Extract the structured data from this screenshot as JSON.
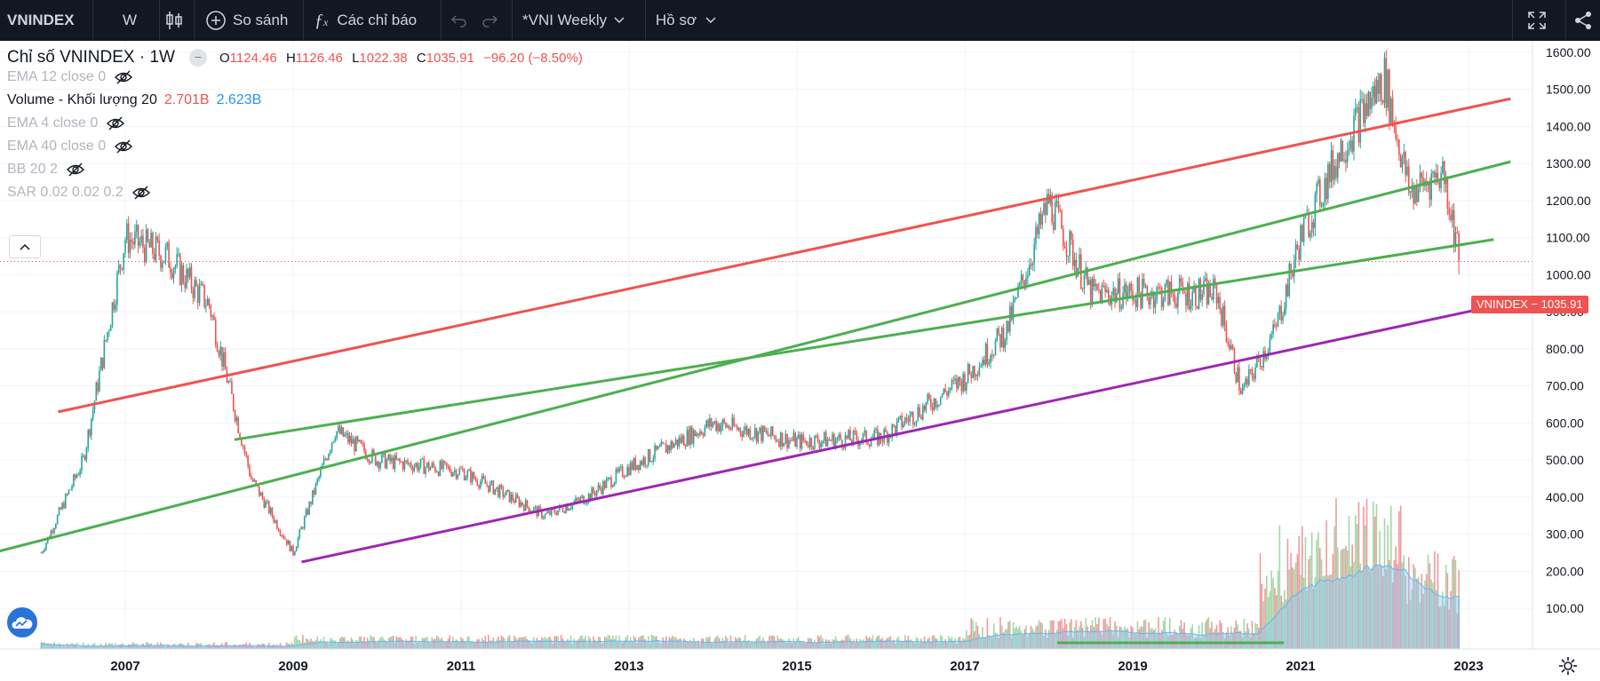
{
  "toolbar": {
    "symbol": "VNINDEX",
    "interval": "W",
    "chart_type_icon": "candles-icon",
    "compare_label": "So sánh",
    "indicators_label": "Các chỉ báo",
    "layout_name": "*VNI Weekly",
    "profile_label": "Hồ sơ"
  },
  "legend": {
    "title": "Chỉ số VNINDEX · 1W",
    "o_label": "O",
    "o_value": "1124.46",
    "h_label": "H",
    "h_value": "1126.46",
    "l_label": "L",
    "l_value": "1022.38",
    "c_label": "C",
    "c_value": "1035.91",
    "change": "−96.20 (−8.50%)",
    "indicators": [
      {
        "label": "EMA 12 close 0",
        "hidden": true
      },
      {
        "label": "Volume - Khối lượng 20",
        "values": [
          "2.701B",
          "2.623B"
        ],
        "hidden": false
      },
      {
        "label": "EMA 4 close 0",
        "hidden": true
      },
      {
        "label": "EMA 40 close 0",
        "hidden": true
      },
      {
        "label": "BB 20 2",
        "hidden": true
      },
      {
        "label": "SAR 0.02 0.02 0.2",
        "hidden": true
      }
    ]
  },
  "price_axis": {
    "ticks": [
      "1600.00",
      "1500.00",
      "1400.00",
      "1300.00",
      "1200.00",
      "1100.00",
      "1000.00",
      "900.00",
      "800.00",
      "700.00",
      "600.00",
      "500.00",
      "400.00",
      "300.00",
      "200.00",
      "100.00"
    ],
    "last_label": "VNINDEX",
    "last_value": "1035.91"
  },
  "time_axis": {
    "ticks": [
      "2007",
      "2009",
      "2011",
      "2013",
      "2015",
      "2017",
      "2019",
      "2021",
      "2023"
    ]
  },
  "colors": {
    "up": "#26a69a",
    "down": "#ef5350",
    "channel_top": "#ef5350",
    "channel_mid": "#4caf50",
    "channel_bottom": "#9c27b0",
    "volume_area": "#90caf9"
  },
  "chart_data": {
    "type": "line",
    "title": "Chỉ số VNINDEX · 1W",
    "x": [
      "2006",
      "2006.5",
      "2007",
      "2007.5",
      "2008",
      "2008.5",
      "2009",
      "2009.5",
      "2010",
      "2011",
      "2012",
      "2012.5",
      "2013",
      "2014",
      "2015",
      "2016",
      "2017",
      "2017.5",
      "2018",
      "2018.5",
      "2019",
      "2020",
      "2020.3",
      "2020.7",
      "2021",
      "2021.5",
      "2022",
      "2022.3",
      "2022.7",
      "2022.9"
    ],
    "series": [
      {
        "name": "VNINDEX",
        "values": [
          250,
          500,
          1100,
          1050,
          920,
          450,
          250,
          580,
          500,
          470,
          350,
          400,
          480,
          600,
          550,
          560,
          720,
          850,
          1200,
          950,
          950,
          950,
          680,
          850,
          1100,
          1350,
          1530,
          1220,
          1280,
          1036
        ]
      }
    ],
    "ylim": [
      0,
      1650
    ],
    "y_ticks": [
      100,
      200,
      300,
      400,
      500,
      600,
      700,
      800,
      900,
      1000,
      1100,
      1200,
      1300,
      1400,
      1500,
      1600
    ],
    "x_ticks": [
      "2007",
      "2009",
      "2011",
      "2013",
      "2015",
      "2017",
      "2019",
      "2021",
      "2023"
    ],
    "trendlines": [
      {
        "color": "red",
        "from": [
          "2006.2",
          630
        ],
        "to": [
          "2023.5",
          1475
        ]
      },
      {
        "color": "green",
        "from": [
          "2005",
          225
        ],
        "to": [
          "2023.5",
          1305
        ]
      },
      {
        "color": "green",
        "from": [
          "2008.3",
          555
        ],
        "to": [
          "2023.3",
          1095
        ]
      },
      {
        "color": "purple",
        "from": [
          "2009.1",
          225
        ],
        "to": [
          "2023.5",
          925
        ]
      }
    ],
    "last_price": 1035.91,
    "volume_ma": "Volume - Khối lượng 20"
  }
}
